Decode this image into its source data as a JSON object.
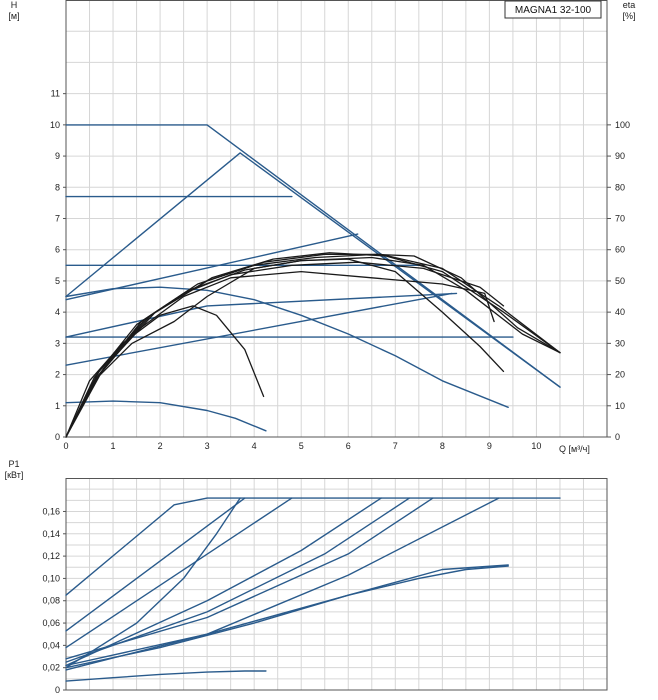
{
  "model_label": "MAGNA1 32-100",
  "colors": {
    "system": "#2a5b8c",
    "pump": "#1a1a1a",
    "grid": "#d6d6d6",
    "frame": "#555555"
  },
  "chart_data": [
    {
      "id": "hq",
      "type": "line",
      "xlabel": "Q [м³/ч]",
      "ylabel_left": [
        "H",
        "[м]"
      ],
      "ylabel_right": [
        "eta",
        "[%]"
      ],
      "xlim": [
        0,
        11.5
      ],
      "ylim": [
        0,
        14
      ],
      "y2lim": [
        0,
        140
      ],
      "grid": true,
      "x_ticks": [
        0,
        1,
        2,
        3,
        4,
        5,
        6,
        7,
        8,
        9,
        10
      ],
      "y_ticks": [
        0,
        1,
        2,
        3,
        4,
        5,
        6,
        7,
        8,
        9,
        10,
        11
      ],
      "y2_ticks": [
        0,
        10,
        20,
        30,
        40,
        50,
        60,
        70,
        80,
        90,
        100
      ],
      "series": [
        {
          "style": "system",
          "points": [
            [
              0,
              10
            ],
            [
              3,
              10
            ],
            [
              10.5,
              1.6
            ]
          ]
        },
        {
          "style": "system",
          "points": [
            [
              0,
              7.7
            ],
            [
              4.8,
              7.7
            ]
          ]
        },
        {
          "style": "system",
          "points": [
            [
              0,
              5.5
            ],
            [
              7.6,
              5.5
            ]
          ]
        },
        {
          "style": "system",
          "points": [
            [
              0,
              3.2
            ],
            [
              9.5,
              3.2
            ]
          ]
        },
        {
          "style": "system",
          "points": [
            [
              0,
              4.5
            ],
            [
              3.7,
              9.1
            ],
            [
              10.5,
              1.6
            ]
          ]
        },
        {
          "style": "system",
          "points": [
            [
              0,
              4.4
            ],
            [
              6.2,
              6.5
            ]
          ]
        },
        {
          "style": "system",
          "points": [
            [
              0,
              3.2
            ],
            [
              3,
              4.2
            ],
            [
              8.3,
              4.6
            ]
          ]
        },
        {
          "style": "system",
          "points": [
            [
              0,
              2.3
            ],
            [
              8.2,
              4.6
            ]
          ]
        },
        {
          "style": "system",
          "points": [
            [
              0,
              4.5
            ],
            [
              1,
              4.75
            ],
            [
              2,
              4.8
            ],
            [
              3,
              4.7
            ],
            [
              4,
              4.4
            ],
            [
              5,
              3.9
            ],
            [
              6,
              3.3
            ],
            [
              7,
              2.6
            ],
            [
              8,
              1.8
            ],
            [
              9.4,
              0.95
            ]
          ]
        },
        {
          "style": "system",
          "points": [
            [
              0,
              1.1
            ],
            [
              1,
              1.15
            ],
            [
              2,
              1.1
            ],
            [
              3,
              0.85
            ],
            [
              3.6,
              0.6
            ],
            [
              4.25,
              0.2
            ]
          ]
        },
        {
          "style": "pump",
          "points": [
            [
              0,
              0
            ],
            [
              0.5,
              1.8
            ],
            [
              1.2,
              3.0
            ],
            [
              2,
              3.9
            ],
            [
              2.7,
              4.2
            ],
            [
              3.2,
              3.9
            ],
            [
              3.8,
              2.8
            ],
            [
              4.2,
              1.3
            ]
          ]
        },
        {
          "style": "pump",
          "points": [
            [
              0,
              0
            ],
            [
              0.6,
              1.8
            ],
            [
              1.4,
              3.0
            ],
            [
              2.3,
              3.7
            ],
            [
              3,
              4.5
            ],
            [
              4,
              5.4
            ],
            [
              5,
              5.65
            ],
            [
              6,
              5.7
            ],
            [
              7,
              5.3
            ],
            [
              8,
              4.0
            ],
            [
              8.8,
              2.9
            ],
            [
              9.3,
              2.1
            ]
          ]
        },
        {
          "style": "pump",
          "points": [
            [
              0,
              0
            ],
            [
              0.6,
              1.8
            ],
            [
              1.5,
              3.4
            ],
            [
              2.5,
              4.5
            ],
            [
              3.5,
              5.1
            ],
            [
              5,
              5.3
            ],
            [
              6.5,
              5.1
            ],
            [
              8,
              4.9
            ],
            [
              8.9,
              4.6
            ],
            [
              9.1,
              3.7
            ]
          ]
        },
        {
          "style": "pump",
          "points": [
            [
              0,
              0
            ],
            [
              0.6,
              1.9
            ],
            [
              1.5,
              3.6
            ],
            [
              2.5,
              4.6
            ],
            [
              3.5,
              5.2
            ],
            [
              4.8,
              5.5
            ],
            [
              6.2,
              5.6
            ],
            [
              7.6,
              5.4
            ],
            [
              8.8,
              4.8
            ],
            [
              9.3,
              4.2
            ]
          ]
        },
        {
          "style": "pump",
          "points": [
            [
              0,
              0
            ],
            [
              0.7,
              2.0
            ],
            [
              1.6,
              3.7
            ],
            [
              2.6,
              4.7
            ],
            [
              3.8,
              5.35
            ],
            [
              5,
              5.65
            ],
            [
              6.5,
              5.75
            ],
            [
              7.6,
              5.5
            ],
            [
              8.5,
              4.7
            ],
            [
              9.7,
              3.3
            ],
            [
              10.5,
              2.7
            ]
          ]
        },
        {
          "style": "pump",
          "points": [
            [
              0,
              0
            ],
            [
              0.7,
              2.1
            ],
            [
              1.7,
              3.8
            ],
            [
              2.8,
              4.9
            ],
            [
              4,
              5.5
            ],
            [
              5.3,
              5.75
            ],
            [
              6.6,
              5.85
            ],
            [
              7.4,
              5.8
            ],
            [
              8.4,
              5.1
            ],
            [
              9.6,
              3.5
            ],
            [
              10.5,
              2.7
            ]
          ]
        },
        {
          "style": "pump",
          "points": [
            [
              0,
              0
            ],
            [
              0.7,
              2.1
            ],
            [
              1.8,
              3.9
            ],
            [
              3,
              5.0
            ],
            [
              4.2,
              5.6
            ],
            [
              5.5,
              5.85
            ],
            [
              6.7,
              5.85
            ],
            [
              8,
              5.4
            ],
            [
              9.2,
              4.2
            ],
            [
              10.5,
              2.7
            ]
          ]
        },
        {
          "style": "pump",
          "points": [
            [
              0,
              0
            ],
            [
              0.8,
              2.2
            ],
            [
              1.9,
              4.0
            ],
            [
              3.1,
              5.1
            ],
            [
              4.4,
              5.7
            ],
            [
              5.6,
              5.9
            ],
            [
              6.8,
              5.8
            ],
            [
              8,
              5.3
            ],
            [
              9.3,
              4.0
            ],
            [
              10.5,
              2.7
            ]
          ]
        }
      ]
    },
    {
      "id": "p1",
      "type": "line",
      "ylabel_left": [
        "P1",
        "[кВт]"
      ],
      "xlim": [
        0,
        11.5
      ],
      "ylim": [
        0,
        0.19
      ],
      "grid": true,
      "y_ticks": [
        0,
        0.02,
        0.04,
        0.06,
        0.08,
        0.1,
        0.12,
        0.14,
        0.16
      ],
      "y_tick_labels": [
        "0",
        "0,02",
        "0,04",
        "0,06",
        "0,08",
        "0,10",
        "0,12",
        "0,14",
        "0,16"
      ],
      "series": [
        {
          "style": "system",
          "points": [
            [
              0,
              0.085
            ],
            [
              2.3,
              0.166
            ],
            [
              3,
              0.172
            ],
            [
              10.5,
              0.172
            ]
          ]
        },
        {
          "style": "system",
          "points": [
            [
              0,
              0.053
            ],
            [
              3.8,
              0.172
            ]
          ]
        },
        {
          "style": "system",
          "points": [
            [
              0,
              0.038
            ],
            [
              4.8,
              0.172
            ]
          ]
        },
        {
          "style": "system",
          "points": [
            [
              0,
              0.02
            ],
            [
              1.5,
              0.06
            ],
            [
              2.5,
              0.1
            ],
            [
              3.2,
              0.14
            ],
            [
              3.7,
              0.172
            ]
          ]
        },
        {
          "style": "system",
          "points": [
            [
              0,
              0.022
            ],
            [
              3,
              0.08
            ],
            [
              5,
              0.125
            ],
            [
              6.7,
              0.172
            ]
          ]
        },
        {
          "style": "system",
          "points": [
            [
              0,
              0.025
            ],
            [
              3,
              0.07
            ],
            [
              5.5,
              0.122
            ],
            [
              7.3,
              0.172
            ]
          ]
        },
        {
          "style": "system",
          "points": [
            [
              0,
              0.028
            ],
            [
              3,
              0.065
            ],
            [
              6,
              0.122
            ],
            [
              7.8,
              0.172
            ]
          ]
        },
        {
          "style": "system",
          "points": [
            [
              0,
              0.022
            ],
            [
              3,
              0.05
            ],
            [
              6,
              0.103
            ],
            [
              9.2,
              0.172
            ]
          ]
        },
        {
          "style": "system",
          "points": [
            [
              0,
              0.02
            ],
            [
              2,
              0.038
            ],
            [
              4,
              0.06
            ],
            [
              6,
              0.085
            ],
            [
              8,
              0.108
            ],
            [
              9.4,
              0.112
            ]
          ]
        },
        {
          "style": "system",
          "points": [
            [
              0,
              0.018
            ],
            [
              3,
              0.05
            ],
            [
              6,
              0.085
            ],
            [
              7.5,
              0.1
            ],
            [
              8.5,
              0.108
            ],
            [
              9.4,
              0.111
            ]
          ]
        },
        {
          "style": "system",
          "points": [
            [
              0,
              0.008
            ],
            [
              1,
              0.011
            ],
            [
              2,
              0.014
            ],
            [
              3,
              0.016
            ],
            [
              3.8,
              0.017
            ],
            [
              4.25,
              0.017
            ]
          ]
        }
      ]
    }
  ]
}
